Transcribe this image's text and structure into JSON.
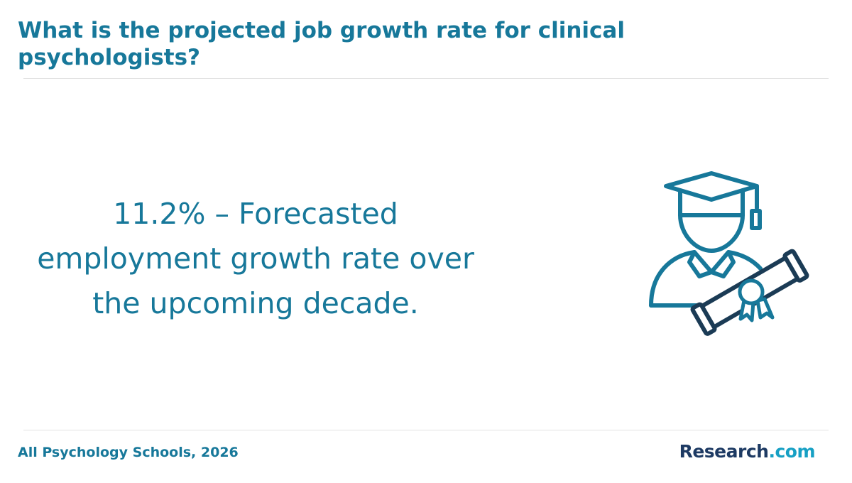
{
  "header": {
    "title": "What is the projected job growth rate for clinical psychologists?"
  },
  "main": {
    "stat_text": "11.2% – Forecasted employment growth rate over the upcoming decade.",
    "illustration_icon": "graduate-with-diploma-icon"
  },
  "footer": {
    "source": "All Psychology Schools, 2026",
    "brand_name": "Research",
    "brand_tld": ".com"
  },
  "colors": {
    "accent": "#17789a",
    "brand_dark": "#1d3a63",
    "brand_light": "#17a0c4",
    "icon_outline": "#1b3b55"
  }
}
